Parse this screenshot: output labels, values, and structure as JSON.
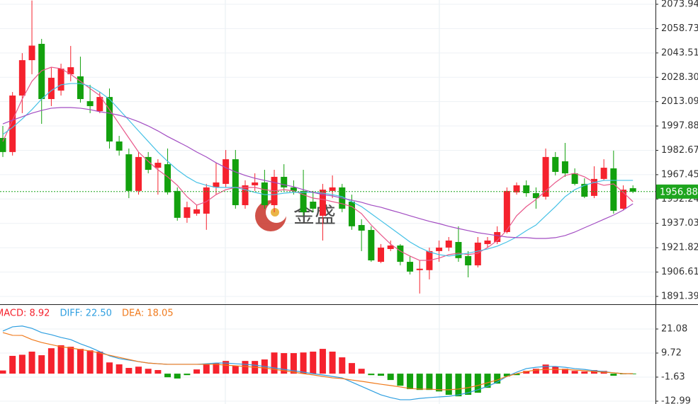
{
  "chart_data": [
    {
      "type": "candlestick",
      "up_color": "#f5222d",
      "down_color": "#13a10e",
      "grid": true,
      "watermark": "金盛",
      "open": [
        1990.4,
        1981.6,
        2016.9,
        2039,
        2049.2,
        2014.7,
        2020,
        2030.2,
        2028.9,
        2013.4,
        2007.2,
        2016,
        1988.2,
        1980.2,
        1957.3,
        1978.5,
        1971.8,
        1974,
        1957.3,
        1940.5,
        1943.1,
        1943.1,
        1959.5,
        1961.7,
        1977.1,
        1948.4,
        1960.8,
        1962.6,
        1948.4,
        1966.1,
        1959.5,
        1957.3,
        1950.6,
        1941.8,
        1957.3,
        1959.5,
        1950.6,
        1936,
        1932.9,
        1913,
        1921,
        1923.2,
        1913,
        1907.8,
        1907.8,
        1919.7,
        1921.9,
        1925.4,
        1916.6,
        1910.8,
        1924.1,
        1925.4,
        1931.6,
        1956.4,
        1960.8,
        1955.9,
        1953.7,
        1978.5,
        1975.8,
        1968.3,
        1961.7,
        1954.2,
        1964.8,
        1971.4,
        1946.2,
        1959
      ],
      "high": [
        1997.9,
        2019.1,
        2043.4,
        2076.3,
        2052.3,
        2034.6,
        2036.8,
        2047.9,
        2041.2,
        2023.6,
        2019.1,
        2021.3,
        1991.7,
        1983.8,
        1981.6,
        1981.6,
        1977.1,
        1983.8,
        1959.5,
        1950.6,
        1948.4,
        1961.7,
        1974.9,
        1982.9,
        1982.9,
        1963.9,
        1968.3,
        1970.5,
        1970.5,
        1974,
        1963.9,
        1970.5,
        1957.3,
        1961.7,
        1967,
        1961.7,
        1955,
        1939.6,
        1935.2,
        1924.1,
        1926.3,
        1924.1,
        1916.6,
        1914,
        1921.9,
        1926.3,
        1928.5,
        1935.2,
        1919.7,
        1928.5,
        1928.5,
        1935.2,
        1959.5,
        1962.6,
        1963.9,
        1959.5,
        1983.8,
        1981.6,
        1987.3,
        1971.4,
        1965.2,
        1972.7,
        1977.1,
        1982.5,
        1960.8,
        1960.8
      ],
      "low": [
        1978.5,
        1979.4,
        2005.9,
        2030.2,
        1999.2,
        2010.3,
        2016.9,
        2025.8,
        2012.5,
        2005.9,
        2005.9,
        1983.8,
        1979.4,
        1952.8,
        1955,
        1968.3,
        1955,
        1955,
        1938.7,
        1937.4,
        1941.8,
        1933,
        1955,
        1959.5,
        1946.2,
        1946.2,
        1957.3,
        1946.2,
        1944,
        1957.3,
        1955,
        1941.8,
        1944,
        1926.3,
        1952.8,
        1944,
        1933,
        1919.7,
        1913,
        1912.2,
        1919.7,
        1910.8,
        1905.1,
        1893.2,
        1902,
        1913,
        1919.7,
        1913,
        1903.3,
        1909.5,
        1921.9,
        1924.1,
        1930.7,
        1955,
        1953.7,
        1946.2,
        1951.9,
        1967,
        1966.1,
        1960.8,
        1952.8,
        1952.8,
        1964,
        1943.1,
        1945.3,
        1955.9
      ],
      "close": [
        1981.6,
        2016.9,
        2039,
        2048.1,
        2014.7,
        2028,
        2033.7,
        2034.6,
        2014.7,
        2010.3,
        2016,
        1988.2,
        1982.5,
        1957.3,
        1978.5,
        1970.5,
        1974.9,
        1956.4,
        1940.5,
        1947.1,
        1945.8,
        1959.5,
        1962.6,
        1977.1,
        1948.4,
        1960.8,
        1962.6,
        1948.4,
        1966.1,
        1959.5,
        1957.3,
        1944,
        1946.2,
        1958.1,
        1959.5,
        1946.2,
        1935.2,
        1932.5,
        1913.9,
        1921.9,
        1923.2,
        1913,
        1906.9,
        1908.7,
        1919.7,
        1921.9,
        1926.3,
        1915.3,
        1910.8,
        1925,
        1926.3,
        1931.6,
        1957.3,
        1960.8,
        1955.9,
        1952.8,
        1978.5,
        1969.2,
        1968.3,
        1961.7,
        1953.7,
        1964.8,
        1971.8,
        1944.9,
        1958.1,
        1956.8
      ],
      "lines": [
        {
          "color": "#e8578a",
          "values": [
            1988.2,
            2001.5,
            2014.7,
            2025.8,
            2032.4,
            2034.6,
            2033.7,
            2030.2,
            2025.8,
            2021.3,
            2016.9,
            2008.1,
            1999.2,
            1990.4,
            1981.6,
            1975.8,
            1970.5,
            1966.1,
            1960.8,
            1953.7,
            1948.4,
            1950.6,
            1955,
            1958.1,
            1959.5,
            1959.5,
            1959.5,
            1958.1,
            1957.3,
            1958.1,
            1957.3,
            1955,
            1952.8,
            1952,
            1950.6,
            1949.3,
            1947.5,
            1943.1,
            1936,
            1929.9,
            1924.1,
            1919.7,
            1916.6,
            1913.9,
            1913.9,
            1915.3,
            1917.5,
            1918.4,
            1917.5,
            1918.4,
            1921.9,
            1926.3,
            1932.9,
            1941.8,
            1947.5,
            1952,
            1957.3,
            1962.6,
            1967,
            1968.3,
            1966.1,
            1962.6,
            1960.8,
            1961.7,
            1956.4,
            1950.6
          ]
        },
        {
          "color": "#45c1e6",
          "values": [
            1992.6,
            1997,
            2002.3,
            2008.1,
            2014.7,
            2020,
            2023.6,
            2024.4,
            2024.4,
            2022.7,
            2019.1,
            2014.7,
            2008.1,
            2001.5,
            1994.8,
            1988.2,
            1981.6,
            1975.8,
            1970.5,
            1966.1,
            1962.6,
            1960.8,
            1959.5,
            1959.5,
            1959.5,
            1958.1,
            1956.4,
            1955,
            1955,
            1955.9,
            1956.4,
            1956.4,
            1956.4,
            1955.9,
            1955,
            1953.7,
            1950.6,
            1947.5,
            1943.1,
            1938.7,
            1934.3,
            1929.9,
            1925.4,
            1921.9,
            1919.2,
            1917.5,
            1916.6,
            1917.5,
            1918.4,
            1919.7,
            1921,
            1922.8,
            1925.4,
            1928.5,
            1932.5,
            1936,
            1941.8,
            1947.5,
            1953.7,
            1958.1,
            1960.8,
            1962.6,
            1963.9,
            1963.9,
            1963.9,
            1963.9
          ]
        },
        {
          "color": "#a24cc2",
          "values": [
            1999.2,
            2001.5,
            2003.7,
            2005.9,
            2007.6,
            2009,
            2009.4,
            2009.4,
            2009,
            2008.1,
            2006.8,
            2005.9,
            2004.6,
            2002.8,
            2000.6,
            1997.9,
            1994.8,
            1991.3,
            1988.2,
            1985.1,
            1981.6,
            1978.5,
            1974.9,
            1971.8,
            1969.2,
            1967,
            1965.2,
            1963.9,
            1962.6,
            1961.2,
            1959.9,
            1958.1,
            1956.4,
            1955,
            1954.2,
            1952.8,
            1951.5,
            1950.2,
            1948.4,
            1947.1,
            1945.3,
            1943.6,
            1941.8,
            1940,
            1938.3,
            1936.9,
            1935.2,
            1933.8,
            1932.5,
            1931.2,
            1930.3,
            1929.4,
            1928.5,
            1928.1,
            1928.1,
            1927.6,
            1927.6,
            1928.1,
            1929.4,
            1931.6,
            1934.3,
            1936.9,
            1939.6,
            1942.2,
            1945.3,
            1949.3
          ]
        }
      ],
      "ylim": [
        1886.5,
        2076.6
      ],
      "yticks": [
        2073.94,
        2058.73,
        2043.51,
        {
          "value": 2028.3,
          "label": "2028.30"
        },
        2013.09,
        1997.88,
        1982.67,
        1967.45,
        1952.24,
        1937.03,
        1921.82,
        1906.61,
        1891.39
      ],
      "last_price": {
        "value": 1956.88,
        "color": "#1ea51e"
      }
    },
    {
      "type": "macd",
      "grid": true,
      "series": [
        {
          "name": "MACD: 8.92",
          "kind": "bar",
          "color": "#f5222d",
          "down_color": "#13a10e",
          "values": [
            1.5,
            8.4,
            8.92,
            10.4,
            8.7,
            12.0,
            13.4,
            12.7,
            11.7,
            11.0,
            10.4,
            5.3,
            4.4,
            2.7,
            3.3,
            2.3,
            1.7,
            -1.7,
            -2.3,
            -0.7,
            2.0,
            4.3,
            5.0,
            6.0,
            3.7,
            6.0,
            6.0,
            6.7,
            10.0,
            9.7,
            9.7,
            10.0,
            10.4,
            11.7,
            10.4,
            7.7,
            5.0,
            2.3,
            -0.7,
            -1.0,
            -3.0,
            -5.7,
            -7.3,
            -7.7,
            -7.7,
            -8.4,
            -10.0,
            -10.7,
            -10.0,
            -9.0,
            -6.7,
            -4.7,
            -1.3,
            -0.7,
            1.3,
            2.3,
            4.3,
            3.3,
            2.3,
            1.3,
            1.0,
            1.7,
            1.3,
            -1.0,
            -0.3,
            -0.3
          ]
        },
        {
          "name": "DIFF: 22.50",
          "kind": "line",
          "color": "#2f9fe0",
          "values": [
            20.1,
            22.1,
            22.5,
            21.4,
            19.4,
            18.4,
            17.1,
            16.1,
            14.1,
            12.4,
            10.4,
            8.4,
            7.1,
            6.4,
            5.7,
            5.0,
            4.7,
            4.4,
            4.4,
            4.4,
            4.4,
            4.7,
            5.0,
            5.0,
            4.7,
            4.4,
            4.0,
            3.4,
            2.7,
            2.0,
            1.4,
            0.7,
            0.0,
            -0.6,
            -1.3,
            -2.0,
            -4.0,
            -6.0,
            -8.0,
            -10.0,
            -11.3,
            -12.3,
            -12.3,
            -11.7,
            -11.3,
            -11.0,
            -10.7,
            -10.0,
            -9.0,
            -7.6,
            -6.0,
            -4.0,
            -1.3,
            0.7,
            2.4,
            3.0,
            3.4,
            3.4,
            3.0,
            2.4,
            2.0,
            1.4,
            1.0,
            0.4,
            0.0,
            0.0
          ]
        },
        {
          "name": "DEA: 18.05",
          "kind": "line",
          "color": "#f07a1c",
          "values": [
            19.4,
            18.1,
            18.05,
            16.1,
            14.7,
            13.7,
            12.7,
            12.1,
            11.4,
            10.7,
            9.7,
            8.7,
            7.7,
            6.7,
            5.7,
            5.0,
            4.7,
            4.4,
            4.4,
            4.4,
            4.4,
            4.4,
            4.4,
            4.0,
            3.7,
            3.4,
            3.0,
            2.7,
            2.0,
            1.4,
            0.7,
            0.0,
            -0.6,
            -1.3,
            -2.0,
            -2.3,
            -3.0,
            -3.6,
            -4.3,
            -5.0,
            -5.6,
            -6.3,
            -7.0,
            -7.3,
            -7.3,
            -7.6,
            -7.6,
            -7.3,
            -6.6,
            -5.6,
            -4.3,
            -3.0,
            -1.3,
            0.0,
            1.0,
            1.7,
            2.0,
            2.0,
            2.0,
            1.7,
            1.4,
            1.0,
            0.7,
            0.4,
            0.0,
            0.0
          ]
        }
      ],
      "ylim": [
        -14.33,
        32.44
      ],
      "yticks": [
        21.08,
        9.72,
        -1.63,
        -12.99
      ]
    }
  ]
}
